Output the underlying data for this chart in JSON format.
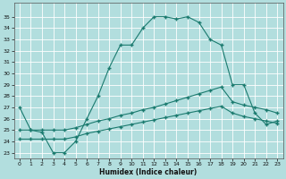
{
  "xlabel": "Humidex (Indice chaleur)",
  "background_color": "#b2dede",
  "grid_color": "#ffffff",
  "line_color": "#1a7a6e",
  "xlim": [
    -0.5,
    23.5
  ],
  "ylim": [
    22.5,
    36.2
  ],
  "xticks": [
    0,
    1,
    2,
    3,
    4,
    5,
    6,
    7,
    8,
    9,
    10,
    11,
    12,
    13,
    14,
    15,
    16,
    17,
    18,
    19,
    20,
    21,
    22,
    23
  ],
  "yticks": [
    23,
    24,
    25,
    26,
    27,
    28,
    29,
    30,
    31,
    32,
    33,
    34,
    35
  ],
  "line1_x": [
    0,
    1,
    2,
    3,
    4,
    5,
    6,
    7,
    8,
    9,
    10,
    11,
    12,
    13,
    14,
    15,
    16,
    17,
    18,
    19,
    20,
    21,
    22,
    23
  ],
  "line1_y": [
    27.0,
    25.0,
    24.8,
    23.0,
    23.0,
    24.0,
    26.0,
    28.0,
    30.5,
    32.5,
    32.5,
    34.0,
    35.0,
    35.0,
    34.8,
    35.0,
    34.5,
    33.0,
    32.5,
    29.0,
    29.0,
    26.5,
    25.5,
    25.8
  ],
  "line2_x": [
    0,
    1,
    2,
    3,
    4,
    5,
    6,
    7,
    8,
    9,
    10,
    11,
    12,
    13,
    14,
    15,
    16,
    17,
    18,
    19,
    20,
    21,
    22,
    23
  ],
  "line2_y": [
    25.0,
    25.0,
    25.0,
    25.0,
    25.0,
    25.2,
    25.5,
    25.8,
    26.0,
    26.3,
    26.5,
    26.8,
    27.0,
    27.3,
    27.6,
    27.9,
    28.2,
    28.5,
    28.8,
    27.5,
    27.2,
    27.0,
    26.8,
    26.5
  ],
  "line3_x": [
    0,
    1,
    2,
    3,
    4,
    5,
    6,
    7,
    8,
    9,
    10,
    11,
    12,
    13,
    14,
    15,
    16,
    17,
    18,
    19,
    20,
    21,
    22,
    23
  ],
  "line3_y": [
    24.2,
    24.2,
    24.2,
    24.2,
    24.2,
    24.4,
    24.7,
    24.9,
    25.1,
    25.3,
    25.5,
    25.7,
    25.9,
    26.1,
    26.3,
    26.5,
    26.7,
    26.9,
    27.1,
    26.5,
    26.2,
    26.0,
    25.8,
    25.6
  ]
}
